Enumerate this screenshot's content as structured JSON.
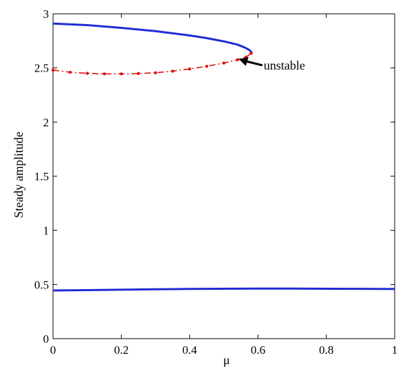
{
  "chart_data": {
    "type": "line",
    "title": "",
    "xlabel": "μ",
    "ylabel": "Steady amplitude",
    "xlim": [
      0,
      1
    ],
    "ylim": [
      0,
      3
    ],
    "xticks": [
      0,
      0.2,
      0.4,
      0.6,
      0.8,
      1
    ],
    "yticks": [
      0,
      0.5,
      1,
      1.5,
      2,
      2.5,
      3
    ],
    "xtick_labels": [
      "0",
      "0.2",
      "0.4",
      "0.6",
      "0.8",
      "1"
    ],
    "ytick_labels": [
      "0",
      "0.5",
      "1",
      "1.5",
      "2",
      "2.5",
      "3"
    ],
    "grid": false,
    "legend": "none",
    "series": [
      {
        "style": "solid",
        "color": "#1f2bd6",
        "x": [
          0,
          0.1,
          0.2,
          0.3,
          0.4,
          0.45,
          0.5,
          0.54,
          0.56,
          0.575,
          0.582
        ],
        "y": [
          2.91,
          2.895,
          2.87,
          2.84,
          2.8,
          2.775,
          2.745,
          2.715,
          2.69,
          2.665,
          2.64
        ]
      },
      {
        "style": "dash-dot-markers",
        "color": "#e01010",
        "x": [
          0,
          0.05,
          0.1,
          0.15,
          0.2,
          0.25,
          0.3,
          0.35,
          0.4,
          0.45,
          0.5,
          0.54,
          0.565,
          0.58
        ],
        "y": [
          2.48,
          2.46,
          2.45,
          2.445,
          2.445,
          2.448,
          2.455,
          2.47,
          2.49,
          2.515,
          2.545,
          2.575,
          2.6,
          2.635
        ]
      },
      {
        "style": "solid",
        "color": "#1f2bd6",
        "x": [
          0,
          0.1,
          0.2,
          0.3,
          0.4,
          0.5,
          0.6,
          0.7,
          0.8,
          0.9,
          1
        ],
        "y": [
          0.445,
          0.448,
          0.452,
          0.456,
          0.459,
          0.461,
          0.462,
          0.462,
          0.461,
          0.46,
          0.458
        ]
      }
    ],
    "annotations": [
      {
        "text": "unstable",
        "points_to": [
          0.54,
          2.575
        ]
      }
    ]
  }
}
